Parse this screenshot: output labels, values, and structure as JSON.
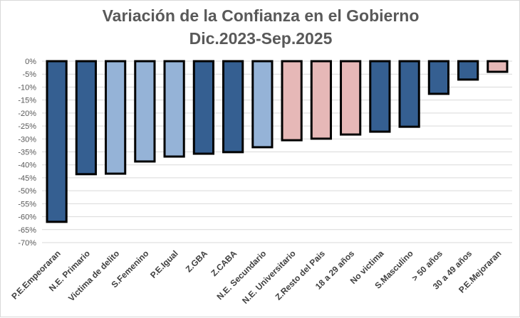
{
  "chart_data": {
    "type": "bar",
    "title": "Variación de la Confianza en el Gobierno",
    "subtitle": "Dic.2023-Sep.2025",
    "xlabel": "",
    "ylabel": "",
    "ylim": [
      -70,
      0
    ],
    "yticks": [
      "0%",
      "-5%",
      "-10%",
      "-15%",
      "-20%",
      "-25%",
      "-30%",
      "-35%",
      "-40%",
      "-45%",
      "-50%",
      "-55%",
      "-60%",
      "-65%",
      "-70%"
    ],
    "grid": true,
    "categories": [
      "P.E.Empeoraran",
      "N.E. Primario",
      "Victima de delito",
      "S.Femenino",
      "P.E.Igual",
      "Z.GBA",
      "Z.CABA",
      "N.E. Secundario",
      "N.E. Universitario",
      "Z.Resto del Pais",
      "18 a 29 años",
      "No victima",
      "S.Masculino",
      "> 50 años",
      "30 a 49 años",
      "P.E.Mejoraran"
    ],
    "values": [
      -62.0,
      -43.6,
      -43.4,
      -38.7,
      -36.8,
      -35.7,
      -35.1,
      -33.2,
      -30.5,
      -29.9,
      -28.3,
      -27.2,
      -25.3,
      -12.6,
      -7.1,
      -4.1
    ],
    "bar_colors": [
      "#355F91",
      "#355F91",
      "#95B3D7",
      "#95B3D7",
      "#95B3D7",
      "#355F91",
      "#355F91",
      "#95B3D7",
      "#E6B8B7",
      "#E6B8B7",
      "#E6B8B7",
      "#355F91",
      "#355F91",
      "#355F91",
      "#355F91",
      "#E6B8B7"
    ],
    "units": "%"
  }
}
